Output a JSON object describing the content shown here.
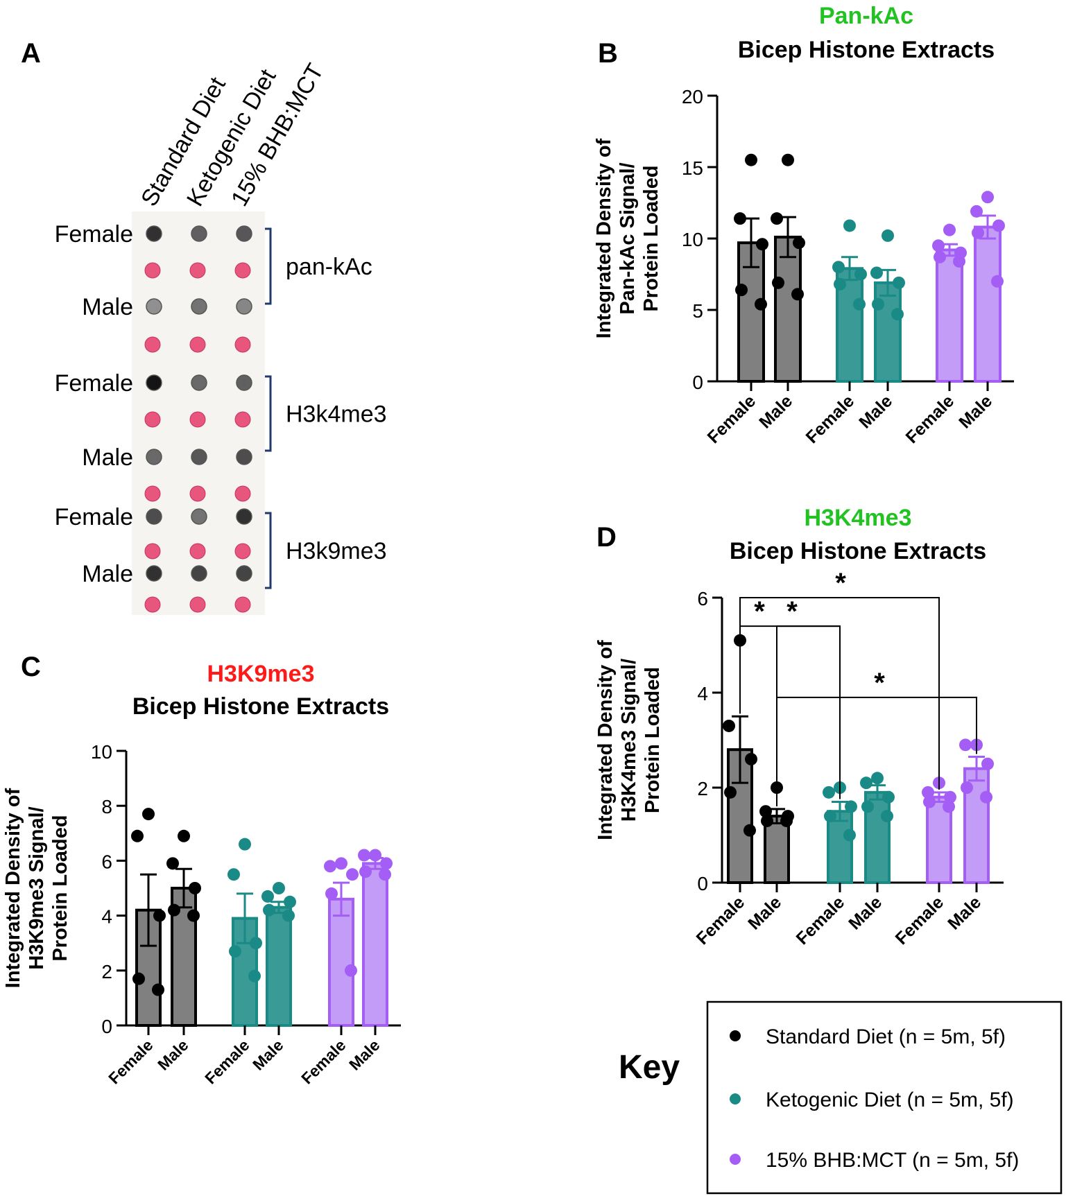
{
  "panels": {
    "A": "A",
    "B": "B",
    "C": "C",
    "D": "D"
  },
  "blot": {
    "columns": [
      "Standard Diet",
      "Ketogenic Diet",
      "15% BHB:MCT"
    ],
    "rows": [
      {
        "label": "Female",
        "kind": "sample",
        "intensity": [
          0.85,
          0.6,
          0.65
        ]
      },
      {
        "label": "",
        "kind": "ponceau"
      },
      {
        "label": "Male",
        "kind": "sample",
        "intensity": [
          0.35,
          0.5,
          0.4
        ]
      },
      {
        "label": "",
        "kind": "ponceau"
      },
      {
        "label": "Female",
        "kind": "sample",
        "intensity": [
          1.0,
          0.55,
          0.6
        ]
      },
      {
        "label": "",
        "kind": "ponceau"
      },
      {
        "label": "Male",
        "kind": "sample",
        "intensity": [
          0.55,
          0.65,
          0.7
        ]
      },
      {
        "label": "",
        "kind": "ponceau"
      },
      {
        "label": "Female",
        "kind": "sample",
        "intensity": [
          0.7,
          0.5,
          0.85
        ]
      },
      {
        "label": "",
        "kind": "ponceau"
      },
      {
        "label": "Male",
        "kind": "sample",
        "intensity": [
          0.85,
          0.75,
          0.75
        ]
      },
      {
        "label": "",
        "kind": "ponceau"
      }
    ],
    "groups": [
      "pan-kAc",
      "H3k4me3",
      "H3k9me3"
    ]
  },
  "key": {
    "title": "Key",
    "items": [
      {
        "label": "Standard Diet (n = 5m, 5f)",
        "color": "#000000"
      },
      {
        "label": "Ketogenic Diet (n = 5m, 5f)",
        "color": "#1a8a86"
      },
      {
        "label": "15% BHB:MCT (n = 5m, 5f)",
        "color": "#a45ef5"
      }
    ]
  },
  "colors": {
    "std_fill": "#808080",
    "std_dot": "#000000",
    "keto_fill": "#3a9a96",
    "keto_dot": "#1a8a86",
    "bhb_fill": "#c29cf7",
    "bhb_dot": "#a45ef5",
    "ponceau": "#e8557d"
  },
  "chart_data": [
    {
      "id": "B",
      "type": "bar",
      "title_top": "Pan-kAc",
      "title": "Bicep Histone Extracts",
      "ylabel": [
        "Integrated Density of",
        "Pan-kAc Signal/",
        "Protein Loaded"
      ],
      "ylim": [
        0,
        20
      ],
      "yticks": [
        0,
        5,
        10,
        15,
        20
      ],
      "categories": [
        "Female",
        "Male",
        "Female",
        "Male",
        "Female",
        "Male"
      ],
      "groups": [
        "Standard Diet",
        "Standard Diet",
        "Ketogenic Diet",
        "Ketogenic Diet",
        "15% BHB:MCT",
        "15% BHB:MCT"
      ],
      "values": [
        9.7,
        10.1,
        7.9,
        6.9,
        9.2,
        10.8
      ],
      "errors": [
        1.7,
        1.4,
        0.8,
        0.9,
        0.4,
        0.8
      ],
      "points": [
        [
          15.5,
          11.4,
          9.6,
          6.4,
          5.4
        ],
        [
          15.5,
          11.4,
          9.7,
          6.9,
          6.1
        ],
        [
          10.9,
          8.0,
          7.5,
          6.8,
          5.4
        ],
        [
          10.2,
          7.6,
          6.9,
          5.4,
          4.7
        ],
        [
          10.6,
          9.5,
          9.0,
          8.7,
          8.4
        ],
        [
          12.9,
          11.9,
          10.9,
          10.4,
          7.0
        ]
      ],
      "significance": []
    },
    {
      "id": "C",
      "type": "bar",
      "title_top": "H3K9me3",
      "title": "Bicep Histone Extracts",
      "ylabel": [
        "Integrated Density of",
        "H3K9me3 Signal/",
        "Protein Loaded"
      ],
      "ylim": [
        0,
        10
      ],
      "yticks": [
        0,
        2,
        4,
        6,
        8,
        10
      ],
      "categories": [
        "Female",
        "Male",
        "Female",
        "Male",
        "Female",
        "Male"
      ],
      "groups": [
        "Standard Diet",
        "Standard Diet",
        "Ketogenic Diet",
        "Ketogenic Diet",
        "15% BHB:MCT",
        "15% BHB:MCT"
      ],
      "values": [
        4.2,
        5.0,
        3.9,
        4.3,
        4.6,
        5.9
      ],
      "errors": [
        1.3,
        0.7,
        0.9,
        0.2,
        0.6,
        0.2
      ],
      "points": [
        [
          7.7,
          6.9,
          4.0,
          1.7,
          1.3
        ],
        [
          6.9,
          5.9,
          5.0,
          4.2,
          4.0
        ],
        [
          6.6,
          5.5,
          3.0,
          2.7,
          1.8
        ],
        [
          5.0,
          4.7,
          4.5,
          4.2,
          4.0
        ],
        [
          5.9,
          5.8,
          5.5,
          4.8,
          2.0
        ],
        [
          6.2,
          6.2,
          5.9,
          5.6,
          5.5
        ]
      ],
      "significance": []
    },
    {
      "id": "D",
      "type": "bar",
      "title_top": "H3K4me3",
      "title": "Bicep Histone Extracts",
      "ylabel": [
        "Integrated Density of",
        "H3K4me3 Signal/",
        "Protein Loaded"
      ],
      "ylim": [
        0,
        6
      ],
      "yticks": [
        0,
        2,
        4,
        6
      ],
      "categories": [
        "Female",
        "Male",
        "Female",
        "Male",
        "Female",
        "Male"
      ],
      "groups": [
        "Standard Diet",
        "Standard Diet",
        "Ketogenic Diet",
        "Ketogenic Diet",
        "15% BHB:MCT",
        "15% BHB:MCT"
      ],
      "values": [
        2.8,
        1.4,
        1.5,
        1.9,
        1.8,
        2.4
      ],
      "errors": [
        0.7,
        0.15,
        0.2,
        0.15,
        0.1,
        0.25
      ],
      "points": [
        [
          5.1,
          3.3,
          2.6,
          1.9,
          1.1
        ],
        [
          2.0,
          1.5,
          1.4,
          1.3,
          1.3
        ],
        [
          2.0,
          1.9,
          1.6,
          1.4,
          1.0
        ],
        [
          2.2,
          2.1,
          1.8,
          1.6,
          1.4
        ],
        [
          2.1,
          1.9,
          1.8,
          1.7,
          1.6
        ],
        [
          2.9,
          2.9,
          2.5,
          2.0,
          1.8
        ]
      ],
      "significance": [
        {
          "from": 0,
          "to": 4,
          "level": 6.0,
          "label": "*"
        },
        {
          "from": 0,
          "to": 2,
          "level": 5.4,
          "label": "*"
        },
        {
          "from": 1,
          "to": 2,
          "level": 5.4,
          "label": "*"
        },
        {
          "from": 1,
          "to": 5,
          "level": 3.9,
          "label": "*"
        }
      ]
    }
  ]
}
